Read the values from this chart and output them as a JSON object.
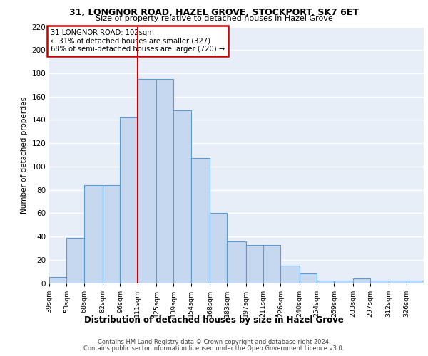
{
  "title_line1": "31, LONGNOR ROAD, HAZEL GROVE, STOCKPORT, SK7 6ET",
  "title_line2": "Size of property relative to detached houses in Hazel Grove",
  "xlabel": "Distribution of detached houses by size in Hazel Grove",
  "ylabel": "Number of detached properties",
  "footer_line1": "Contains HM Land Registry data © Crown copyright and database right 2024.",
  "footer_line2": "Contains public sector information licensed under the Open Government Licence v3.0.",
  "annotation_line1": "31 LONGNOR ROAD: 102sqm",
  "annotation_line2": "← 31% of detached houses are smaller (327)",
  "annotation_line3": "68% of semi-detached houses are larger (720) →",
  "bar_labels": [
    "39sqm",
    "53sqm",
    "68sqm",
    "82sqm",
    "96sqm",
    "111sqm",
    "125sqm",
    "139sqm",
    "154sqm",
    "168sqm",
    "183sqm",
    "197sqm",
    "211sqm",
    "226sqm",
    "240sqm",
    "254sqm",
    "269sqm",
    "283sqm",
    "297sqm",
    "312sqm",
    "326sqm"
  ],
  "bar_values": [
    5,
    39,
    84,
    84,
    142,
    175,
    175,
    148,
    107,
    60,
    36,
    33,
    33,
    15,
    8,
    2,
    2,
    4,
    2,
    2,
    2
  ],
  "bar_edges": [
    32,
    46,
    60,
    75,
    89,
    103,
    118,
    132,
    146,
    161,
    175,
    190,
    204,
    218,
    233,
    247,
    261,
    276,
    290,
    305,
    319,
    333
  ],
  "bar_color": "#c5d8f0",
  "bar_edge_color": "#5b9bd5",
  "vline_x": 103,
  "vline_color": "#cc0000",
  "annotation_box_color": "#cc0000",
  "background_color": "#e8eef8",
  "grid_color": "#ffffff",
  "ylim": [
    0,
    220
  ],
  "yticks": [
    0,
    20,
    40,
    60,
    80,
    100,
    120,
    140,
    160,
    180,
    200,
    220
  ]
}
